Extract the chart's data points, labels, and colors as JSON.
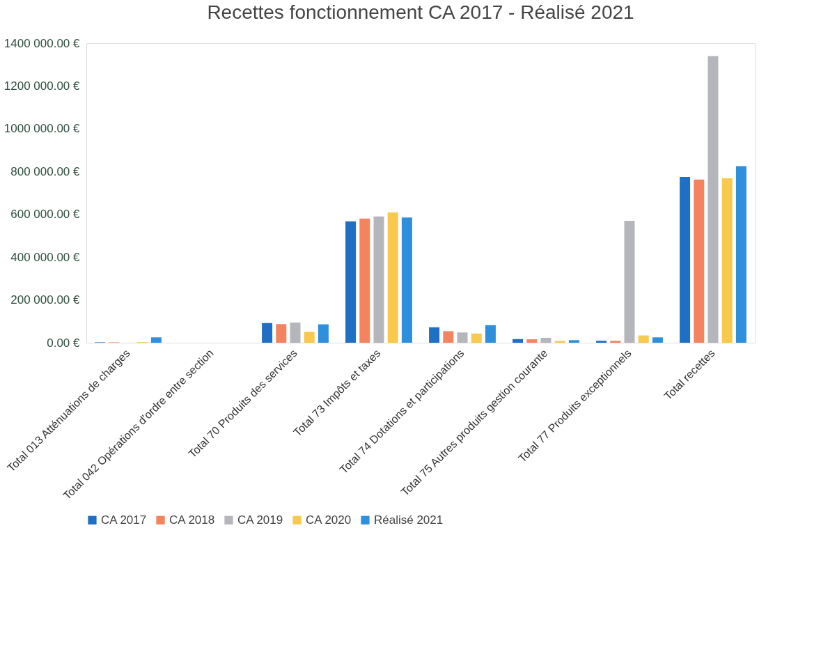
{
  "chart_data": {
    "type": "bar",
    "title": "Recettes fonctionnement CA 2017 - Réalisé 2021",
    "categories": [
      "Total 013 Atténuations de charges",
      "Total 042 Opérations d'ordre entre section",
      "Total 70 Produits des services",
      "Total 73 Impôts et taxes",
      "Total 74 Dotations et participations",
      "Total 75 Autres produits gestion courante",
      "Total 77 Produits exceptionnels",
      "Total recettes"
    ],
    "series": [
      {
        "name": "CA 2017",
        "color": "#1f6fc4",
        "values": [
          2000,
          0,
          92000,
          567000,
          72000,
          17000,
          9000,
          775000
        ]
      },
      {
        "name": "CA 2018",
        "color": "#f4845f",
        "values": [
          2000,
          0,
          87000,
          580000,
          54000,
          16000,
          9000,
          763000
        ]
      },
      {
        "name": "CA 2019",
        "color": "#b4b6bb",
        "values": [
          0,
          0,
          94000,
          590000,
          48000,
          23000,
          570000,
          1340000
        ]
      },
      {
        "name": "CA 2020",
        "color": "#f8c94d",
        "values": [
          3000,
          0,
          51000,
          609000,
          43000,
          8000,
          34000,
          768000
        ]
      },
      {
        "name": "Réalisé 2021",
        "color": "#2e8fdd",
        "values": [
          25000,
          0,
          86000,
          585000,
          82000,
          12000,
          25000,
          825000
        ]
      }
    ],
    "ylim": [
      0,
      1400000
    ],
    "yticks": [
      {
        "value": 0,
        "label": "0.00 €"
      },
      {
        "value": 200000,
        "label": "200 000.00 €"
      },
      {
        "value": 400000,
        "label": "400 000.00 €"
      },
      {
        "value": 600000,
        "label": "600 000.00 €"
      },
      {
        "value": 800000,
        "label": "800 000.00 €"
      },
      {
        "value": 1000000,
        "label": "1000 000.00 €"
      },
      {
        "value": 1200000,
        "label": "1200 000.00 €"
      },
      {
        "value": 1400000,
        "label": "1400 000.00 €"
      }
    ],
    "legend": "bottom",
    "grid": false
  }
}
